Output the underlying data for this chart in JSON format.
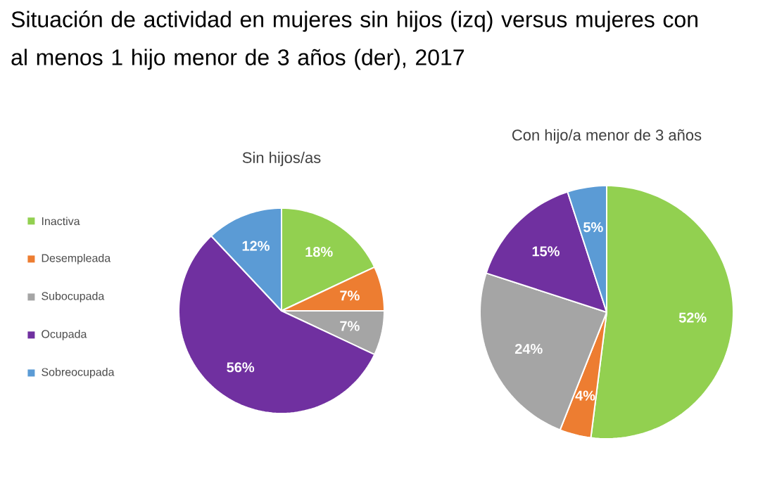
{
  "chart_data": [
    {
      "type": "pie",
      "title": "Situación de actividad en mujeres sin hijos (izq) versus mujeres con al menos 1 hijo menor de 3 años (der), 2017",
      "subtitle": "Sin hijos/as",
      "categories": [
        "Inactiva",
        "Desempleada",
        "Subocupada",
        "Ocupada",
        "Sobreocupada"
      ],
      "values": [
        18,
        7,
        7,
        56,
        12
      ],
      "value_labels": [
        "18%",
        "7%",
        "7%",
        "56%",
        "12%"
      ],
      "colors": [
        "#92d050",
        "#ed7d31",
        "#a5a5a5",
        "#7030a0",
        "#5b9bd5"
      ],
      "legend": "left"
    },
    {
      "type": "pie",
      "subtitle": "Con hijo/a menor de 3 años",
      "categories": [
        null,
        null,
        null,
        null,
        null
      ],
      "values": [
        52,
        4,
        24,
        15,
        5
      ],
      "value_labels": [
        "52%",
        "4%",
        "24%",
        "15%",
        "5%"
      ],
      "colors": [
        "#92d050",
        "#ed7d31",
        "#a5a5a5",
        "#7030a0",
        "#5b9bd5"
      ]
    }
  ]
}
